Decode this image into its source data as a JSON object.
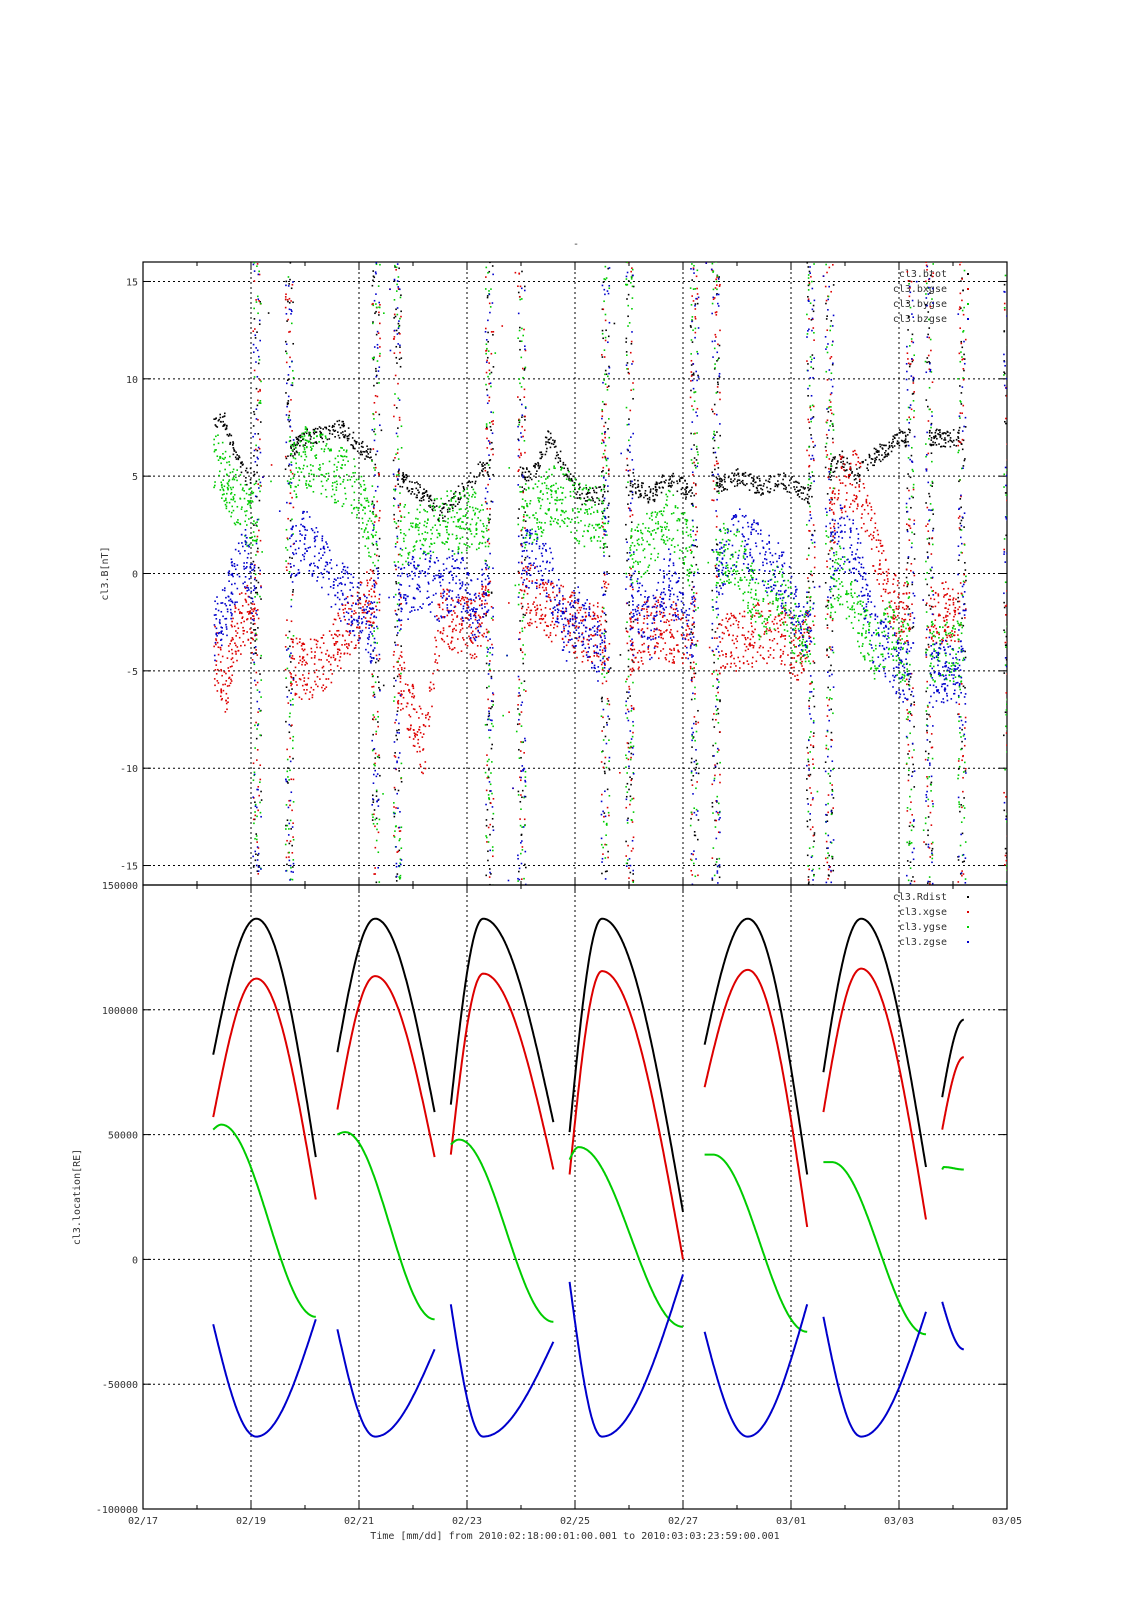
{
  "figure": {
    "title": "-",
    "xlabel": "Time [mm/dd]  from 2010:02:18:00:01:00.001  to  2010:03:03:23:59:00.001"
  },
  "chart_data": [
    {
      "type": "scatter",
      "panel": "top",
      "ylabel": "cl3.B[nT]",
      "xlim": [
        "02/17",
        "03/05"
      ],
      "ylim": [
        -16,
        16
      ],
      "yticks": [
        -15,
        -10,
        -5,
        0,
        5,
        10,
        15
      ],
      "xticks": [
        "02/17",
        "02/19",
        "02/21",
        "02/23",
        "02/25",
        "02/27",
        "03/01",
        "03/03",
        "03/05"
      ],
      "grid": true,
      "legend_position": "top-right",
      "gaps": [
        [
          2.1,
          2.7
        ],
        [
          4.3,
          4.7
        ],
        [
          6.4,
          7.0
        ],
        [
          8.55,
          9.0
        ],
        [
          10.2,
          10.6
        ],
        [
          12.35,
          12.7
        ],
        [
          14.2,
          14.55
        ],
        [
          15.15,
          16.0
        ]
      ],
      "series": [
        {
          "name": "cl3.btot",
          "color": "#000000",
          "x": [
            1.3,
            1.5,
            1.7,
            1.9,
            2.0,
            3.0,
            3.4,
            3.7,
            4.0,
            4.2,
            5.2,
            5.5,
            5.8,
            6.1,
            6.3,
            7.2,
            7.5,
            7.8,
            8.1,
            8.4,
            9.1,
            9.4,
            9.7,
            10.0,
            10.1,
            11.0,
            11.4,
            11.8,
            12.1,
            12.3,
            12.9,
            13.2,
            13.5,
            13.8,
            14.0
          ],
          "values": [
            8,
            8,
            6,
            5,
            5,
            7,
            7.3,
            7.5,
            6.5,
            6,
            4,
            3,
            4,
            5,
            5.5,
            5,
            7,
            5.5,
            4,
            4,
            4.5,
            4,
            5,
            4.5,
            4,
            5,
            4.5,
            4.8,
            4.5,
            4,
            6,
            5,
            6,
            6.5,
            7
          ]
        },
        {
          "name": "cl3.bxgse",
          "color": "#dd0000",
          "x": [
            1.3,
            1.5,
            1.7,
            1.9,
            2.0,
            3.0,
            3.4,
            3.7,
            4.0,
            4.2,
            5.2,
            5.5,
            5.8,
            6.1,
            6.3,
            7.2,
            7.5,
            7.8,
            8.1,
            8.4,
            9.1,
            9.4,
            9.7,
            10.0,
            10.1,
            11.0,
            11.4,
            11.8,
            12.1,
            12.3,
            12.9,
            13.2,
            13.5,
            13.8,
            14.0
          ],
          "values": [
            -4,
            -6,
            -3,
            -2,
            -3,
            -5,
            -4.5,
            -3,
            -2,
            -1,
            -9,
            -2,
            -2.5,
            -3,
            -2,
            -1,
            -2,
            -2,
            -3,
            -3,
            -3.5,
            -2.5,
            -3,
            -3,
            -4,
            -3.5,
            -3,
            -3,
            -4,
            -3,
            4.5,
            4.8,
            2,
            -1,
            -2
          ]
        },
        {
          "name": "cl3.bygse",
          "color": "#00cc00",
          "x": [
            1.3,
            1.5,
            1.7,
            1.9,
            2.0,
            3.0,
            3.4,
            3.7,
            4.0,
            4.2,
            5.2,
            5.5,
            5.8,
            6.1,
            6.3,
            7.2,
            7.5,
            7.8,
            8.1,
            8.4,
            9.1,
            9.4,
            9.7,
            10.0,
            10.1,
            11.0,
            11.4,
            11.8,
            12.1,
            12.3,
            12.9,
            13.2,
            13.5,
            13.8,
            14.0
          ],
          "values": [
            6,
            5,
            4,
            3,
            3,
            6,
            5.5,
            5,
            4,
            2,
            2,
            3,
            2.5,
            3,
            2,
            3,
            4,
            4,
            3,
            3,
            1,
            2,
            3,
            2,
            1,
            1,
            -2,
            -1,
            -3,
            -3,
            0,
            -2,
            -4,
            -3,
            -4
          ]
        },
        {
          "name": "cl3.bzgse",
          "color": "#0000cc",
          "x": [
            1.3,
            1.5,
            1.7,
            1.9,
            2.0,
            3.0,
            3.4,
            3.7,
            4.0,
            4.2,
            5.2,
            5.5,
            5.8,
            6.1,
            6.3,
            7.2,
            7.5,
            7.8,
            8.1,
            8.4,
            9.1,
            9.4,
            9.7,
            10.0,
            10.1,
            11.0,
            11.4,
            11.8,
            12.1,
            12.3,
            12.9,
            13.2,
            13.5,
            13.8,
            14.0
          ],
          "values": [
            -3,
            -2,
            0,
            1,
            -1,
            2,
            0,
            -1,
            -2,
            -3,
            0,
            -1,
            0,
            -2,
            -1,
            1,
            0,
            -3,
            -2,
            -4,
            -1,
            -3,
            0,
            -2,
            -3,
            2,
            1,
            0,
            -2,
            -3,
            2,
            1,
            -3,
            -4,
            -5
          ]
        }
      ]
    },
    {
      "type": "scatter",
      "panel": "bottom",
      "ylabel": "cl3.location[RE]",
      "xlim": [
        "02/17",
        "03/05"
      ],
      "ylim": [
        -100000,
        150000
      ],
      "yticks": [
        -100000,
        -50000,
        0,
        50000,
        100000,
        150000
      ],
      "xticks": [
        "02/17",
        "02/19",
        "02/21",
        "02/23",
        "02/25",
        "02/27",
        "03/01",
        "03/03",
        "03/05"
      ],
      "grid": true,
      "legend_position": "top-right",
      "orbits": [
        {
          "start": 1.3,
          "end": 3.2,
          "peak_x": 2.1,
          "rdist": [
            82000,
            136500,
            41000
          ],
          "xgse": [
            57000,
            112500,
            24000
          ],
          "ygse": [
            52000,
            54000,
            -23000
          ],
          "zgse": [
            -26000,
            -71000,
            -24000
          ]
        },
        {
          "start": 3.6,
          "end": 5.4,
          "peak_x": 4.3,
          "rdist": [
            83000,
            136500,
            59000
          ],
          "xgse": [
            60000,
            113500,
            41000
          ],
          "ygse": [
            50000,
            51000,
            -24000
          ],
          "zgse": [
            -28000,
            -71000,
            -36000
          ]
        },
        {
          "start": 5.7,
          "end": 7.6,
          "peak_x": 6.3,
          "rdist": [
            62000,
            136500,
            55000
          ],
          "xgse": [
            42000,
            114500,
            36000
          ],
          "ygse": [
            46000,
            48000,
            -25000
          ],
          "zgse": [
            -18000,
            -71000,
            -33000
          ]
        },
        {
          "start": 7.9,
          "end": 10.0,
          "peak_x": 8.5,
          "rdist": [
            51000,
            136500,
            19000
          ],
          "xgse": [
            34000,
            115500,
            0
          ],
          "ygse": [
            40000,
            45000,
            -27000
          ],
          "zgse": [
            -9000,
            -71000,
            -6000
          ]
        },
        {
          "start": 10.4,
          "end": 12.3,
          "peak_x": 11.2,
          "rdist": [
            86000,
            136500,
            34000
          ],
          "xgse": [
            69000,
            116000,
            13000
          ],
          "ygse": [
            42000,
            42000,
            -29000
          ],
          "zgse": [
            -29000,
            -71000,
            -18000
          ]
        },
        {
          "start": 12.6,
          "end": 14.5,
          "peak_x": 13.3,
          "rdist": [
            75000,
            136500,
            37000
          ],
          "xgse": [
            59000,
            116500,
            16000
          ],
          "ygse": [
            39000,
            39000,
            -30000
          ],
          "zgse": [
            -23000,
            -71000,
            -21000
          ]
        },
        {
          "start": 14.8,
          "end": 15.2,
          "peak_x": 15.2,
          "rdist": [
            65000,
            96000,
            96000
          ],
          "xgse": [
            52000,
            81000,
            81000
          ],
          "ygse": [
            36000,
            37000,
            36000
          ],
          "zgse": [
            -17000,
            -36000,
            -36000
          ]
        }
      ],
      "series": [
        {
          "name": "cl3.Rdist",
          "color": "#000000"
        },
        {
          "name": "cl3.xgse",
          "color": "#dd0000"
        },
        {
          "name": "cl3.ygse",
          "color": "#00cc00"
        },
        {
          "name": "cl3.zgse",
          "color": "#0000cc"
        }
      ]
    }
  ]
}
